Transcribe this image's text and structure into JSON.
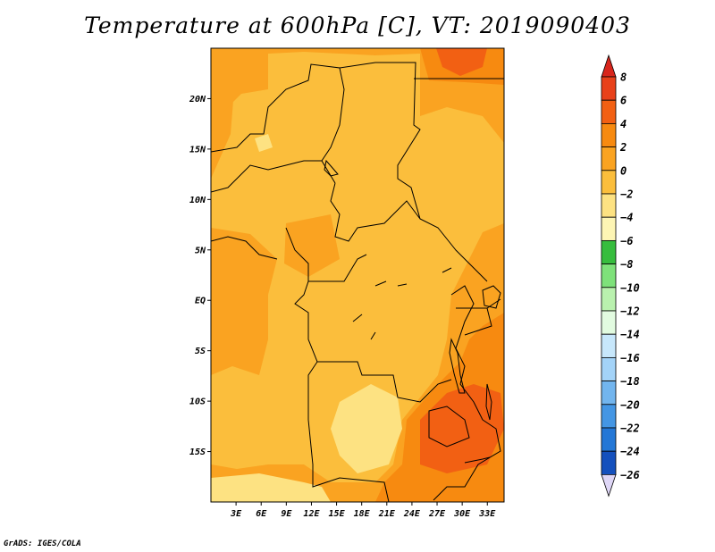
{
  "title": "Temperature at 600hPa [C], VT: 2019090403",
  "credit": "GrADS: IGES/COLA",
  "map": {
    "lon_range": [
      0,
      35
    ],
    "lat_range": [
      -20,
      25
    ],
    "lat_ticks": [
      {
        "value": 20,
        "label": "20N"
      },
      {
        "value": 15,
        "label": "15N"
      },
      {
        "value": 10,
        "label": "10N"
      },
      {
        "value": 5,
        "label": "5N"
      },
      {
        "value": 0,
        "label": "EQ"
      },
      {
        "value": -5,
        "label": "5S"
      },
      {
        "value": -10,
        "label": "10S"
      },
      {
        "value": -15,
        "label": "15S"
      }
    ],
    "lon_ticks": [
      {
        "value": 3,
        "label": "3E"
      },
      {
        "value": 6,
        "label": "6E"
      },
      {
        "value": 9,
        "label": "9E"
      },
      {
        "value": 12,
        "label": "12E"
      },
      {
        "value": 15,
        "label": "15E"
      },
      {
        "value": 18,
        "label": "18E"
      },
      {
        "value": 21,
        "label": "21E"
      },
      {
        "value": 24,
        "label": "24E"
      },
      {
        "value": 27,
        "label": "27E"
      },
      {
        "value": 30,
        "label": "30E"
      },
      {
        "value": 33,
        "label": "33E"
      }
    ]
  },
  "colorbar": {
    "levels": [
      "8",
      "6",
      "4",
      "2",
      "0",
      "−2",
      "−4",
      "−6",
      "−8",
      "−10",
      "−12",
      "−14",
      "−16",
      "−18",
      "−20",
      "−22",
      "−24",
      "−26"
    ],
    "colors": [
      "#e8411a",
      "#f26013",
      "#f78a10",
      "#faa321",
      "#fbbe3c",
      "#fde282",
      "#fdf5b4",
      "#37bd3e",
      "#7ee17a",
      "#b9f1ae",
      "#e2fbe0",
      "#c7e7fb",
      "#a3d3f8",
      "#72b5ee",
      "#4496e4",
      "#2477d6",
      "#1450bd",
      "#0b319e"
    ],
    "top_color": "#d8261c",
    "bottom_color": "#ded6f6"
  }
}
